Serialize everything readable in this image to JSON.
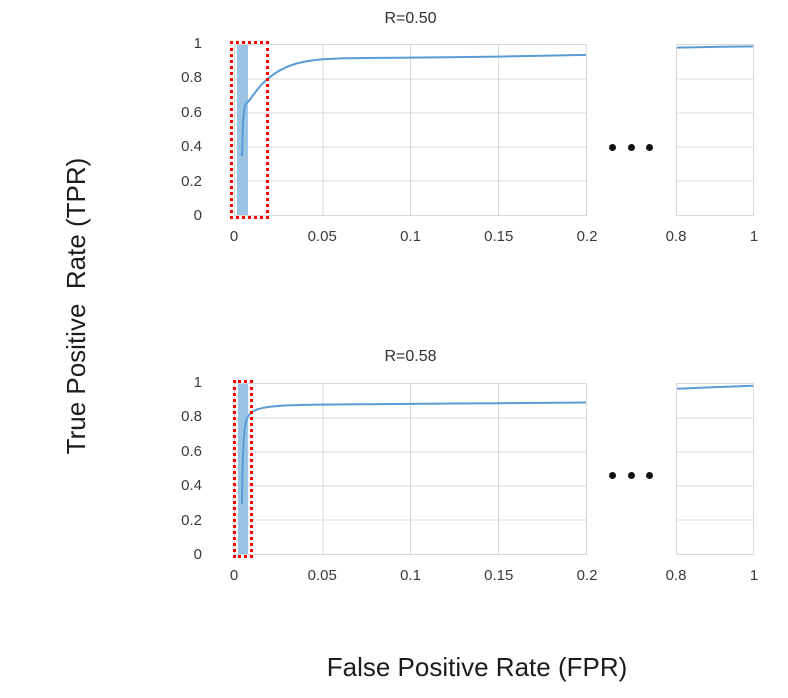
{
  "y_axis_title": "True Positive  Rate (TPR)",
  "x_axis_title": "False Positive Rate (FPR)",
  "colors": {
    "curve": "#5B9BD5",
    "highlight_band": "#90BCE3",
    "red_box": "#FF0000",
    "gridline": "#D9D9D9",
    "tick_text": "#3A3A3A"
  },
  "chart_data": [
    {
      "type": "line",
      "title": "R=0.50",
      "ylabel": "True Positive Rate (TPR)",
      "xlabel": "False Positive Rate (FPR)",
      "ylim": [
        0,
        1
      ],
      "y_ticks": [
        1,
        0.8,
        0.6,
        0.4,
        0.2,
        0
      ],
      "y_tick_labels": [
        "1",
        "0.8",
        "0.6",
        "0.4",
        "0.2",
        "0"
      ],
      "axis_break": true,
      "grid": true,
      "panels": [
        {
          "x_range": [
            0,
            0.2
          ],
          "x_ticks": [
            0,
            0.05,
            0.1,
            0.15,
            0.2
          ],
          "x_tick_labels": [
            "0",
            "0.05",
            "0.1",
            "0.15",
            "0.2"
          ],
          "points": [
            [
              0.004,
              0.35
            ],
            [
              0.0045,
              0.52
            ],
            [
              0.005,
              0.6
            ],
            [
              0.0055,
              0.635
            ],
            [
              0.006,
              0.65
            ],
            [
              0.007,
              0.662
            ],
            [
              0.008,
              0.672
            ],
            [
              0.01,
              0.7
            ],
            [
              0.0125,
              0.735
            ],
            [
              0.015,
              0.765
            ],
            [
              0.0175,
              0.79
            ],
            [
              0.02,
              0.813
            ],
            [
              0.025,
              0.848
            ],
            [
              0.03,
              0.873
            ],
            [
              0.035,
              0.891
            ],
            [
              0.04,
              0.903
            ],
            [
              0.045,
              0.911
            ],
            [
              0.05,
              0.916
            ],
            [
              0.06,
              0.921
            ],
            [
              0.08,
              0.924
            ],
            [
              0.1,
              0.926
            ],
            [
              0.125,
              0.929
            ],
            [
              0.15,
              0.932
            ],
            [
              0.175,
              0.937
            ],
            [
              0.2,
              0.942
            ]
          ]
        },
        {
          "x_range": [
            0.8,
            1
          ],
          "x_ticks": [
            0.8,
            1
          ],
          "x_tick_labels": [
            "0.8",
            "1"
          ],
          "points": [
            [
              0.8,
              0.985
            ],
            [
              0.9,
              0.989
            ],
            [
              1.0,
              0.992
            ]
          ]
        }
      ],
      "annotations": {
        "highlight_band_x": [
          0.0011,
          0.0074
        ],
        "red_dashed_box_x": [
          -0.001,
          0.0187
        ]
      }
    },
    {
      "type": "line",
      "title": "R=0.58",
      "ylabel": "True Positive Rate (TPR)",
      "xlabel": "False Positive Rate (FPR)",
      "ylim": [
        0,
        1
      ],
      "y_ticks": [
        1,
        0.8,
        0.6,
        0.4,
        0.2,
        0
      ],
      "y_tick_labels": [
        "1",
        "0.8",
        "0.6",
        "0.4",
        "0.2",
        "0"
      ],
      "axis_break": true,
      "grid": true,
      "panels": [
        {
          "x_range": [
            0,
            0.2
          ],
          "x_ticks": [
            0,
            0.05,
            0.1,
            0.15,
            0.2
          ],
          "x_tick_labels": [
            "0",
            "0.05",
            "0.1",
            "0.15",
            "0.2"
          ],
          "points": [
            [
              0.004,
              0.3
            ],
            [
              0.0042,
              0.45
            ],
            [
              0.0045,
              0.57
            ],
            [
              0.005,
              0.67
            ],
            [
              0.0055,
              0.73
            ],
            [
              0.006,
              0.77
            ],
            [
              0.007,
              0.8
            ],
            [
              0.008,
              0.818
            ],
            [
              0.01,
              0.838
            ],
            [
              0.013,
              0.852
            ],
            [
              0.016,
              0.86
            ],
            [
              0.02,
              0.866
            ],
            [
              0.025,
              0.871
            ],
            [
              0.03,
              0.874
            ],
            [
              0.04,
              0.877
            ],
            [
              0.05,
              0.879
            ],
            [
              0.07,
              0.881
            ],
            [
              0.1,
              0.883
            ],
            [
              0.125,
              0.885
            ],
            [
              0.15,
              0.887
            ],
            [
              0.175,
              0.889
            ],
            [
              0.2,
              0.891
            ]
          ]
        },
        {
          "x_range": [
            0.8,
            1
          ],
          "x_ticks": [
            0.8,
            1
          ],
          "x_tick_labels": [
            "0.8",
            "1"
          ],
          "points": [
            [
              0.8,
              0.972
            ],
            [
              0.9,
              0.982
            ],
            [
              1.0,
              0.99
            ]
          ]
        }
      ],
      "annotations": {
        "highlight_band_x": [
          0.0017,
          0.0074
        ],
        "red_dashed_box_x": [
          0.0008,
          0.0098
        ]
      }
    }
  ]
}
